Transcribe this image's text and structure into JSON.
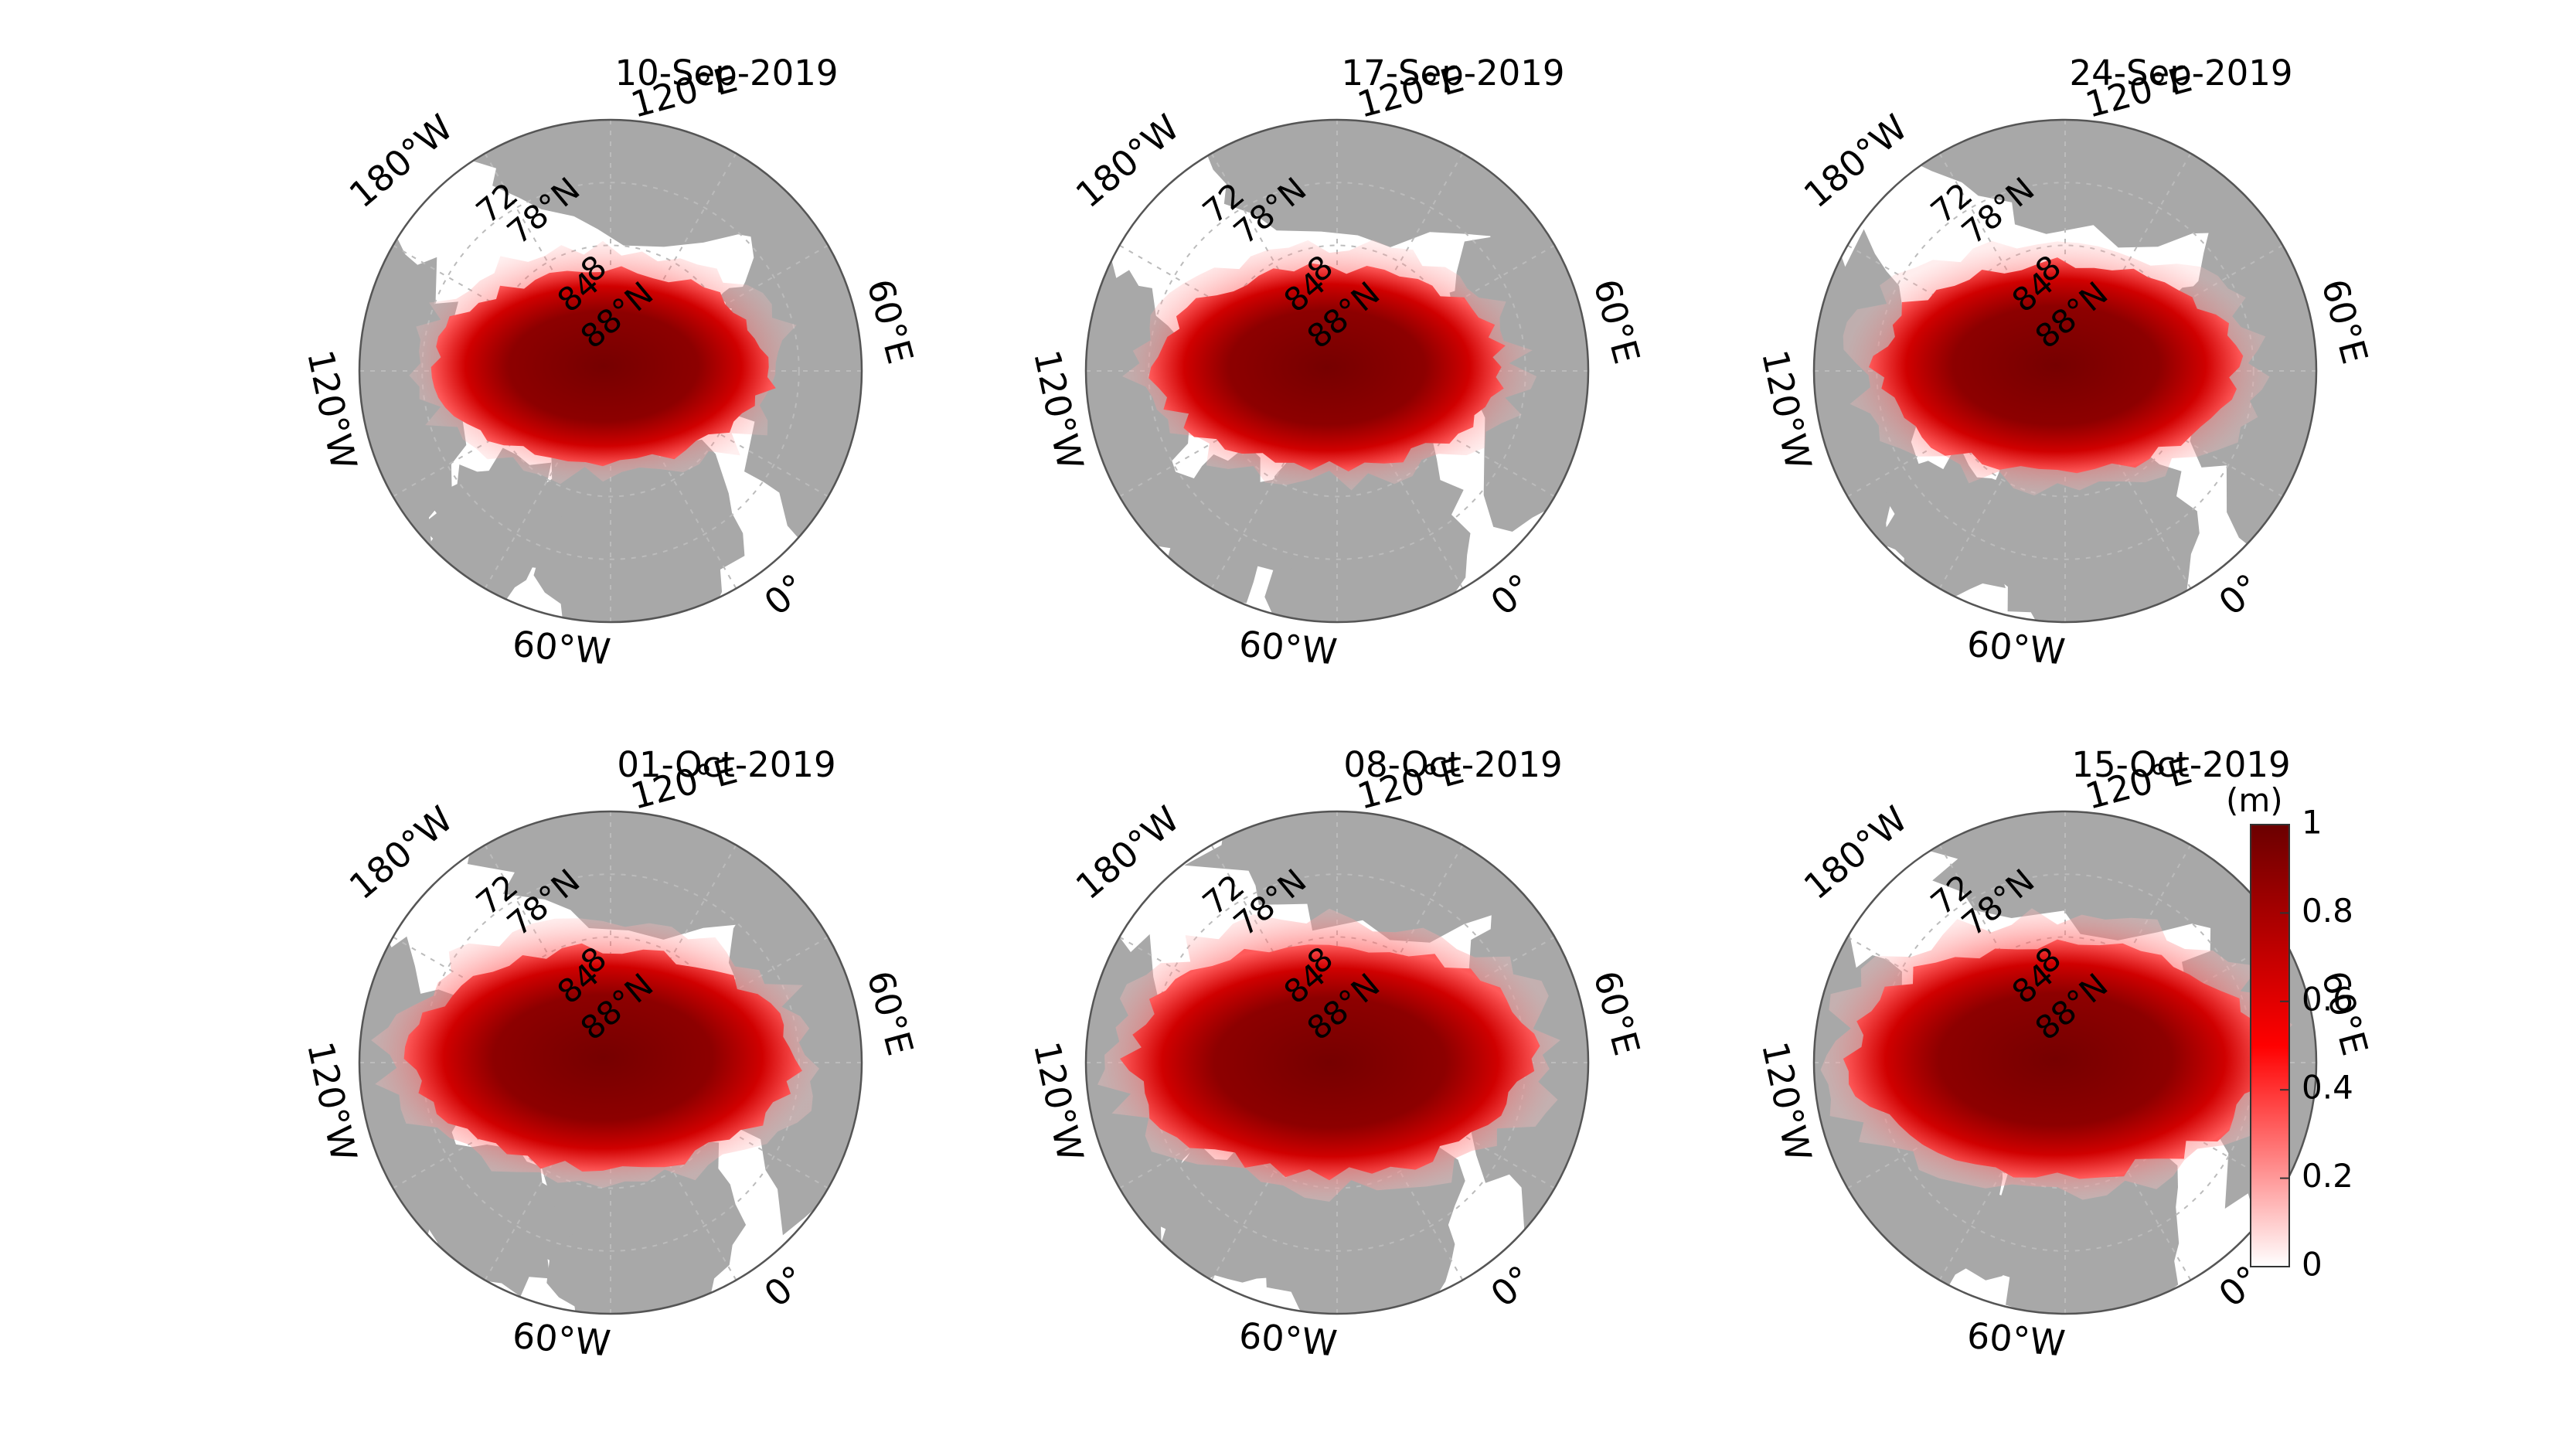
{
  "figure": {
    "colorbar": {
      "unit_label": "(m)",
      "ticks": [
        "1",
        "0.8",
        "0.6",
        "0.4",
        "0.2",
        "0"
      ],
      "range": [
        0,
        1
      ],
      "colors": {
        "low": "#ffffff",
        "mid": "#ff0000",
        "high": "#6b0000"
      }
    },
    "map_colors": {
      "land": "#a8a8a8",
      "ocean": "#ffffff",
      "ice_dark": "#7a0000",
      "ice_mid": "#cc0000",
      "ice_light": "#ff8080"
    },
    "maps": [
      {
        "title": "10-Sep-2019",
        "extent": 0.92,
        "marginal_ice": 0.25
      },
      {
        "title": "17-Sep-2019",
        "extent": 0.95,
        "marginal_ice": 0.3
      },
      {
        "title": "24-Sep-2019",
        "extent": 1.0,
        "marginal_ice": 0.35
      },
      {
        "title": "01-Oct-2019",
        "extent": 1.05,
        "marginal_ice": 0.55
      },
      {
        "title": "08-Oct-2019",
        "extent": 1.1,
        "marginal_ice": 0.6
      },
      {
        "title": "15-Oct-2019",
        "extent": 1.12,
        "marginal_ice": 0.65
      }
    ],
    "lon_labels": {
      "e120": "120°E",
      "e60": "60°E",
      "zero": "0°",
      "w60": "60°W",
      "w120": "120°W",
      "w180": "180°W"
    },
    "lat_labels": {
      "l72": "72",
      "l78": "78°N",
      "l84": "84",
      "l88": "88°N",
      "l80": "8"
    }
  }
}
